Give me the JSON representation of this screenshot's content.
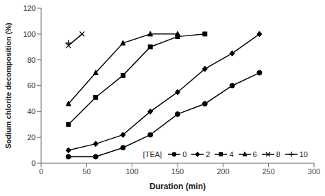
{
  "chart_data": {
    "type": "line",
    "x_label": "Duration (min)",
    "y_label": "Sodium chlorite decomposition (%)",
    "annotation": "[TEA]",
    "xlim": [
      0,
      300
    ],
    "ylim": [
      0,
      120
    ],
    "xticks": [
      0,
      50,
      100,
      150,
      200,
      250,
      300
    ],
    "yticks": [
      0,
      20,
      40,
      60,
      80,
      100,
      120
    ],
    "color": "#000000",
    "legend": "lower right",
    "grid": false,
    "series": [
      {
        "name": "0",
        "marker": "circle",
        "x": [
          30,
          60,
          90,
          120,
          150,
          180,
          210,
          240
        ],
        "values": [
          5,
          5,
          12,
          22,
          38,
          46,
          60,
          70
        ]
      },
      {
        "name": "2",
        "marker": "diamond",
        "x": [
          30,
          60,
          90,
          120,
          150,
          180,
          210,
          240
        ],
        "values": [
          10,
          15,
          22,
          40,
          55,
          73,
          85,
          100
        ]
      },
      {
        "name": "4",
        "marker": "square",
        "x": [
          30,
          60,
          90,
          120,
          150,
          180
        ],
        "values": [
          30,
          51,
          68,
          90,
          98,
          100
        ]
      },
      {
        "name": "6",
        "marker": "triangle",
        "x": [
          30,
          60,
          90,
          120,
          150
        ],
        "values": [
          46,
          70,
          93,
          100,
          100
        ]
      },
      {
        "name": "8",
        "marker": "x",
        "x": [
          30,
          45
        ],
        "values": [
          91,
          100
        ]
      },
      {
        "name": "10",
        "marker": "plus",
        "x": [
          30
        ],
        "values": [
          93
        ]
      }
    ]
  }
}
